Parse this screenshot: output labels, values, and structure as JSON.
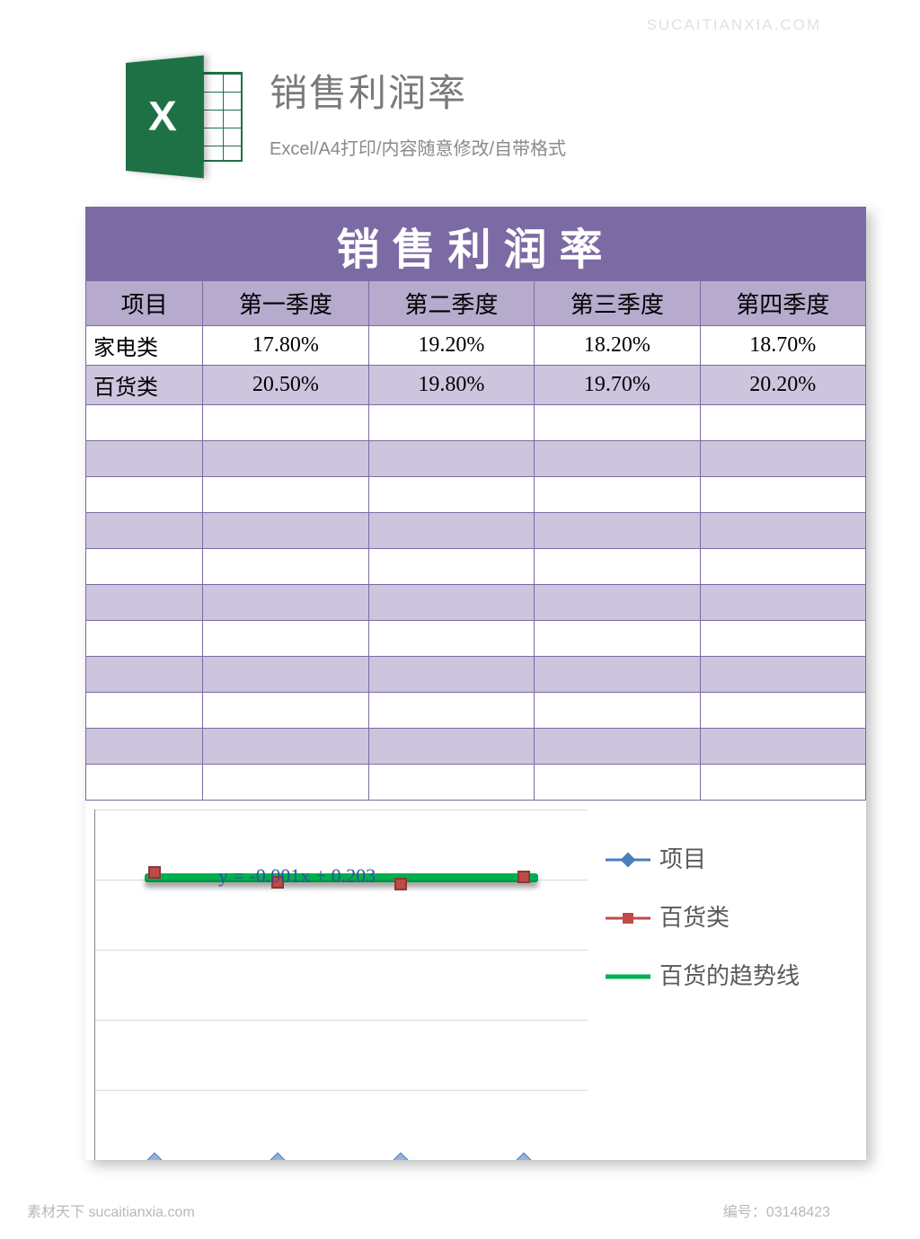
{
  "header": {
    "title": "销售利润率",
    "subtitle": "Excel/A4打印/内容随意修改/自带格式",
    "icon_letter": "X"
  },
  "sheet": {
    "title": "销售利润率",
    "title_bg": "#7b6aa3",
    "header_bg": "#b6aacd",
    "alt_row_bg": "#cdc4de",
    "border_color": "#7b6aa3",
    "columns": [
      "项目",
      "第一季度",
      "第二季度",
      "第三季度",
      "第四季度"
    ],
    "rows": [
      [
        "家电类",
        "17.80%",
        "19.20%",
        "18.20%",
        "18.70%"
      ],
      [
        "百货类",
        "20.50%",
        "19.80%",
        "19.70%",
        "20.20%"
      ]
    ],
    "empty_rows": 11
  },
  "chart": {
    "type": "line",
    "ylim": [
      0,
      0.25
    ],
    "ytick_step": 0.05,
    "yticks": [
      "0.25",
      "0.2",
      "0.15",
      "0.1",
      "0.05"
    ],
    "grid_color": "#d9d9d9",
    "background_color": "#ffffff",
    "legend": [
      {
        "marker": "line-diamond",
        "label": "项目"
      },
      {
        "marker": "line-square",
        "label": "百货类"
      },
      {
        "marker": "line-green",
        "label": "百货的趋势线"
      }
    ],
    "baihuo_series": {
      "color": "#be4b48",
      "marker": "square",
      "x_positions_pct": [
        12,
        37,
        62,
        87
      ],
      "y_values": [
        0.205,
        0.198,
        0.197,
        0.202
      ]
    },
    "xiangmu_series": {
      "color": "#4a7ebb",
      "marker": "diamond",
      "x_positions_pct": [
        12,
        37,
        62,
        87
      ],
      "y_values": [
        0.0,
        0.0,
        0.0,
        0.0
      ]
    },
    "trend": {
      "color": "#00b050",
      "left_pct": 10,
      "width_pct": 80,
      "y_value": 0.201
    },
    "equation": "y = -0.001x + 0.203",
    "equation_pos": {
      "left_pct": 25,
      "y_value": 0.203
    },
    "label_fontsize": 24
  },
  "footer": {
    "left": "素材天下 sucaitianxia.com",
    "right": "编号：03148423"
  },
  "watermark": "SUCAITIANXIA.COM"
}
